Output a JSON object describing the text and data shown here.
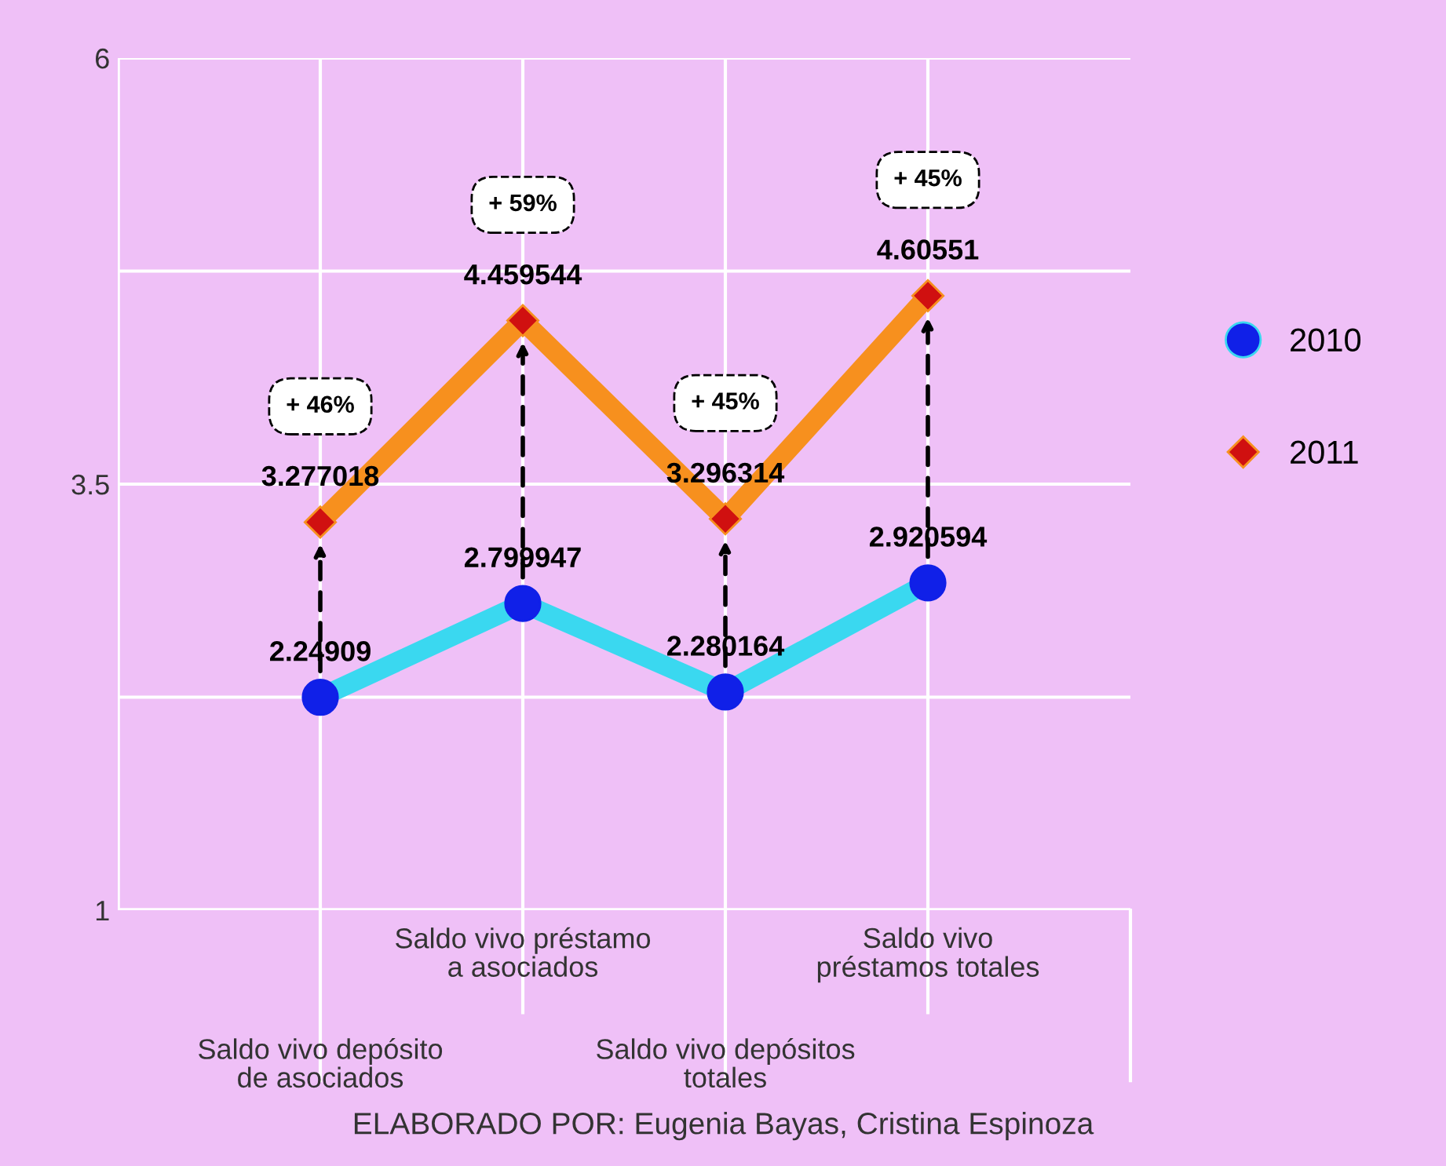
{
  "chart_data": {
    "type": "line",
    "categories": [
      "Saldo vivo depósito\nde asociados",
      "Saldo vivo préstamo\na asociados",
      "Saldo vivo depósitos\ntotales",
      "Saldo vivo\npréstamos totales"
    ],
    "series": [
      {
        "name": "2010",
        "color": "#3ad8f0",
        "marker": "circle",
        "colors": [
          "#1020e8",
          "#1020e8",
          "#1020e8",
          "#1020e8"
        ],
        "values": [
          2.24909,
          2.799947,
          2.280164,
          2.920594
        ]
      },
      {
        "name": "2011",
        "color": "#f7901e",
        "marker": "diamond",
        "colors": [
          "#d01010",
          "#d01010",
          "#d01010",
          "#d01010"
        ],
        "values": [
          3.277018,
          4.459544,
          3.296314,
          4.60551
        ]
      }
    ],
    "ylim": [
      1,
      6
    ],
    "yticks": [
      1,
      {
        "value": 2.25,
        "label": null
      },
      3.5,
      {
        "value": 4.75,
        "label": null
      },
      6
    ],
    "grid": true,
    "legend": "right",
    "data_labels": true,
    "annotations": [
      "+ 46%",
      "+ 59%",
      "+ 45%",
      "+ 45%",
      "ELABORADO POR: Eugenia Bayas, Cristina Espinoza"
    ]
  }
}
